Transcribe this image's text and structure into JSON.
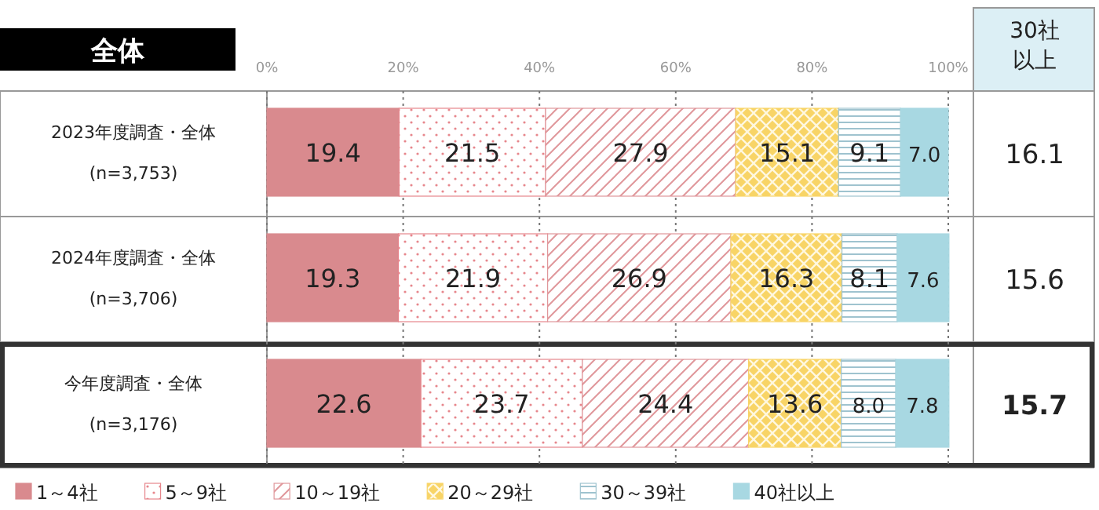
{
  "chart_data": {
    "type": "bar",
    "orientation": "horizontal",
    "stacked": true,
    "title": "全体",
    "categories": [
      "2023年度調査・全体\n(n=3,753)",
      "2024年度調査・全体\n(n=3,706)",
      "今年度調査・全体\n(n=3,176)"
    ],
    "series": [
      {
        "name": "1～4社",
        "color": "#d98a8e",
        "values": [
          19.4,
          19.3,
          22.6
        ],
        "value_labels": [
          "19.4",
          "19.3",
          "22.6"
        ]
      },
      {
        "name": "5～9社",
        "color": "#e7868c",
        "values": [
          21.5,
          21.9,
          23.7
        ],
        "value_labels": [
          "21.5",
          "21.9",
          "23.7"
        ]
      },
      {
        "name": "10～19社",
        "color": "#e0979b",
        "values": [
          27.9,
          26.9,
          24.4
        ],
        "value_labels": [
          "27.9",
          "26.9",
          "24.4"
        ]
      },
      {
        "name": "20～29社",
        "color": "#f8d466",
        "values": [
          15.1,
          16.3,
          13.6
        ],
        "value_labels": [
          "15.1",
          "16.3",
          "13.6"
        ]
      },
      {
        "name": "30～39社",
        "color": "#9fc3cf",
        "values": [
          9.1,
          8.1,
          8.0
        ],
        "value_labels": [
          "9.1",
          "8.1",
          "8.0"
        ]
      },
      {
        "name": "40社以上",
        "color": "#a8d8e2",
        "values": [
          7.0,
          7.6,
          7.8
        ],
        "value_labels": [
          "7.0",
          "7.6",
          "7.8"
        ]
      }
    ],
    "xlim": [
      0,
      100
    ],
    "xticks": [
      {
        "value": 0,
        "label": "0%"
      },
      {
        "value": 20,
        "label": "20%"
      },
      {
        "value": 40,
        "label": "40%"
      },
      {
        "value": 60,
        "label": "60%"
      },
      {
        "value": 80,
        "label": "80%"
      },
      {
        "value": 100,
        "label": "100%"
      }
    ],
    "grid": "x",
    "legend": "bottom",
    "annotations": [
      "30社",
      "以上",
      "16.1",
      "15.6",
      "15.7"
    ]
  }
}
